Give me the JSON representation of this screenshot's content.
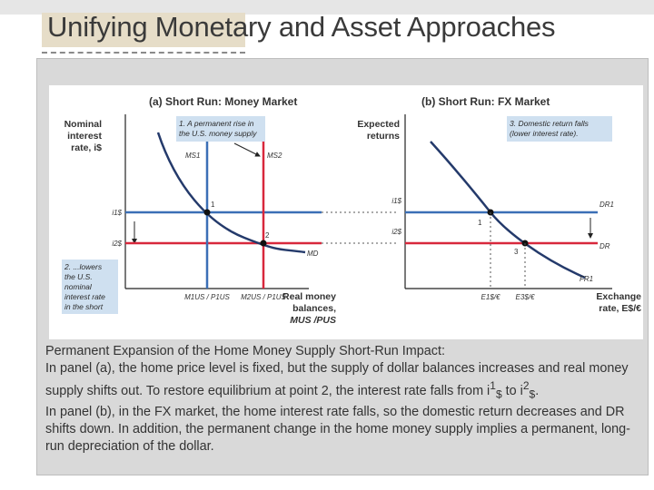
{
  "slide": {
    "title": "Unifying Monetary and Asset Approaches"
  },
  "figure": {
    "panel_a": {
      "title": "(a) Short Run: Money Market",
      "y_axis_label_lines": [
        "Nominal",
        "interest",
        "rate, i$"
      ],
      "x_axis_label_lines": [
        "Real money",
        "balances,",
        "MUS /PUS"
      ],
      "curves": {
        "ms1": "MS1",
        "ms2": "MS2",
        "md": "MD"
      },
      "points": {
        "p1": "1",
        "p2": "2"
      },
      "y_ticks": {
        "i1": "i1$",
        "i2": "i2$"
      },
      "x_ticks": {
        "m1": "M1US / P1US",
        "m2": "M2US / P1US"
      },
      "annotation1_lines": [
        "1. A permanent rise in",
        "the U.S. money supply"
      ],
      "annotation2_lines": [
        "2. ...lowers",
        "the U.S.",
        "nominal",
        "interest rate",
        "in the short"
      ]
    },
    "panel_b": {
      "title": "(b) Short Run: FX Market",
      "y_axis_label_lines": [
        "Expected",
        "returns"
      ],
      "x_axis_label_lines": [
        "Exchange",
        "rate, E$/€"
      ],
      "curves": {
        "dr1": "DR1",
        "dr2": "DR",
        "fr": "FR1"
      },
      "points": {
        "p1": "1",
        "p3": "3"
      },
      "y_ticks": {
        "i1": "i1$",
        "i2": "i2$"
      },
      "x_ticks": {
        "e1": "E1$/€",
        "e3": "E3$/€"
      },
      "annotation3_lines": [
        "3. Domestic return falls",
        "(lower interest rate)."
      ]
    },
    "colors": {
      "blue": "#3b6fb6",
      "red": "#d8283c",
      "navy": "#243a6b",
      "annotation_bg": "#cfe0f0"
    }
  },
  "caption": {
    "heading": "Permanent Expansion of the Home Money Supply Short-Run Impact:",
    "para1": "In panel (a), the home price level is fixed, but the supply of dollar balances increases and real money supply shifts out. To restore equilibrium at point 2, the interest rate falls from i",
    "para1_sup": "1",
    "para1_sub": "$",
    "para1_mid": " to i",
    "para1_sup2": "2",
    "para1_sub2": "$",
    "para1_end": ".",
    "para2": "In panel (b), in the FX market, the home interest rate falls, so the domestic return decreases and DR shifts down. In addition, the permanent change in the home money supply implies a permanent, long-run depreciation of the dollar."
  }
}
